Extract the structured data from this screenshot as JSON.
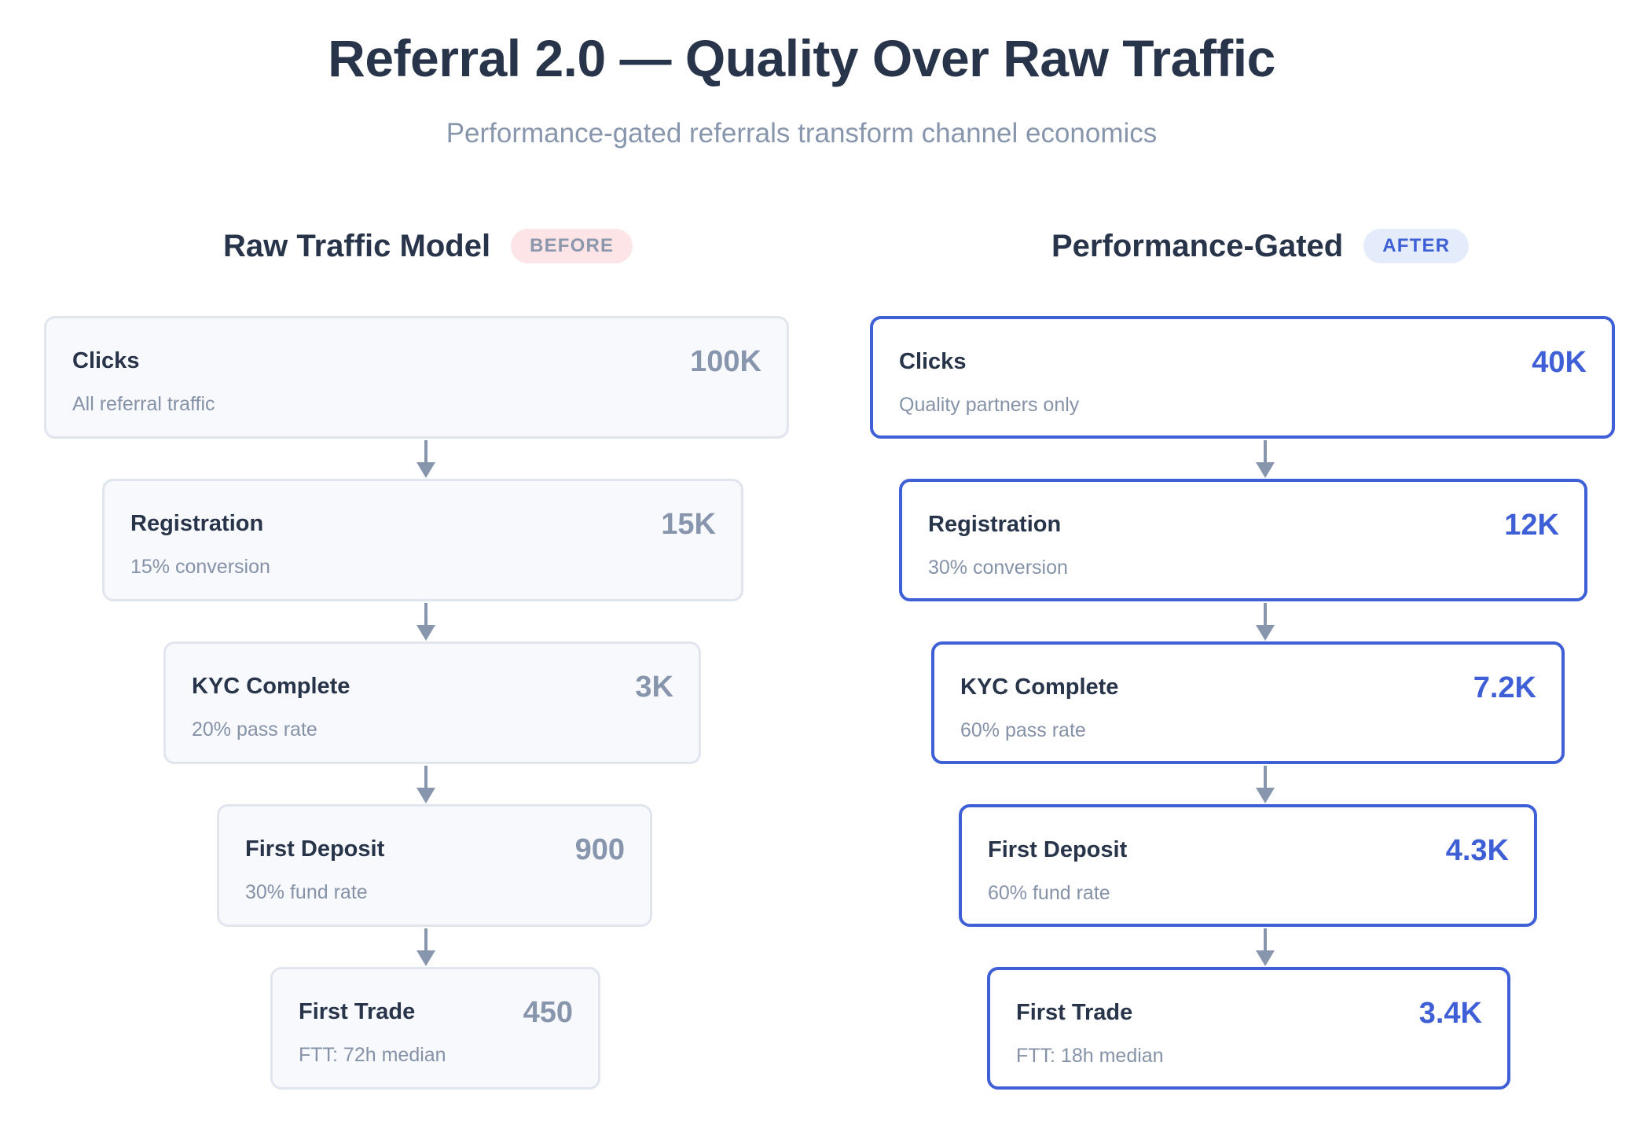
{
  "title": "Referral 2.0 — Quality Over Raw Traffic",
  "subtitle": "Performance-gated referrals transform channel economics",
  "colors": {
    "heading": "#283449",
    "muted": "#8896ad",
    "accent": "#3e5fd6",
    "before_badge_bg": "#fde4e6",
    "after_badge_bg": "#e4ecfb",
    "arrow": "#8896ad"
  },
  "before": {
    "heading": "Raw Traffic Model",
    "badge": "BEFORE",
    "stages": [
      {
        "name": "Clicks",
        "desc": "All referral traffic",
        "value": "100K"
      },
      {
        "name": "Registration",
        "desc": "15% conversion",
        "value": "15K"
      },
      {
        "name": "KYC Complete",
        "desc": "20% pass rate",
        "value": "3K"
      },
      {
        "name": "First Deposit",
        "desc": "30% fund rate",
        "value": "900"
      },
      {
        "name": "First Trade",
        "desc": "FTT: 72h median",
        "value": "450"
      }
    ]
  },
  "after": {
    "heading": "Performance-Gated",
    "badge": "AFTER",
    "stages": [
      {
        "name": "Clicks",
        "desc": "Quality partners only",
        "value": "40K"
      },
      {
        "name": "Registration",
        "desc": "30% conversion",
        "value": "12K"
      },
      {
        "name": "KYC Complete",
        "desc": "60% pass rate",
        "value": "7.2K"
      },
      {
        "name": "First Deposit",
        "desc": "60% fund rate",
        "value": "4.3K"
      },
      {
        "name": "First Trade",
        "desc": "FTT: 18h median",
        "value": "3.4K"
      }
    ]
  }
}
